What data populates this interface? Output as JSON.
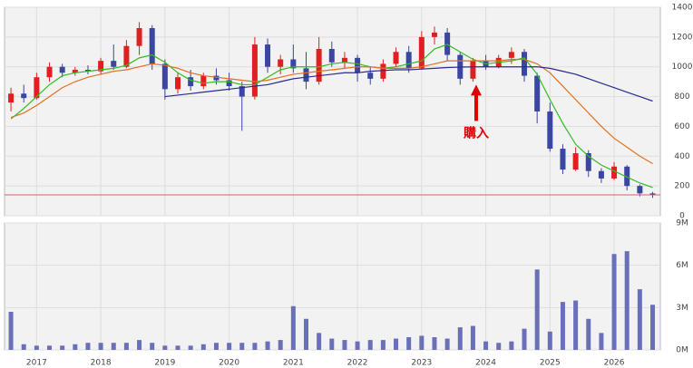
{
  "chart_data": [
    {
      "type": "candlestick",
      "x": [
        2016.6,
        2016.8,
        2017.0,
        2017.2,
        2017.4,
        2017.6,
        2017.8,
        2018.0,
        2018.2,
        2018.4,
        2018.6,
        2018.8,
        2019.0,
        2019.2,
        2019.4,
        2019.6,
        2019.8,
        2020.0,
        2020.2,
        2020.4,
        2020.6,
        2020.8,
        2021.0,
        2021.2,
        2021.4,
        2021.6,
        2021.8,
        2022.0,
        2022.2,
        2022.4,
        2022.6,
        2022.8,
        2023.0,
        2023.2,
        2023.4,
        2023.6,
        2023.8,
        2024.0,
        2024.2,
        2024.4,
        2024.6,
        2024.8,
        2025.0,
        2025.2,
        2025.4,
        2025.6,
        2025.8,
        2026.0,
        2026.2,
        2026.4,
        2026.6
      ],
      "open": [
        760,
        820,
        790,
        930,
        1000,
        960,
        980,
        970,
        1040,
        1000,
        1140,
        1260,
        1020,
        850,
        930,
        870,
        940,
        910,
        870,
        800,
        1150,
        1000,
        1050,
        990,
        900,
        1120,
        1030,
        1060,
        960,
        920,
        1020,
        1100,
        990,
        1200,
        1230,
        1080,
        920,
        1040,
        1000,
        1060,
        1100,
        940,
        700,
        450,
        310,
        420,
        300,
        250,
        330,
        200,
        150
      ],
      "high": [
        860,
        880,
        960,
        1030,
        1020,
        1000,
        1010,
        1060,
        1150,
        1180,
        1300,
        1280,
        1050,
        960,
        980,
        960,
        990,
        960,
        900,
        1200,
        1190,
        1080,
        1150,
        1100,
        1200,
        1170,
        1100,
        1080,
        1000,
        1050,
        1130,
        1140,
        1240,
        1270,
        1260,
        1100,
        1060,
        1080,
        1080,
        1130,
        1120,
        960,
        760,
        480,
        460,
        440,
        320,
        360,
        340,
        210,
        160
      ],
      "low": [
        700,
        760,
        780,
        900,
        930,
        940,
        950,
        950,
        980,
        990,
        1080,
        980,
        780,
        820,
        840,
        850,
        880,
        840,
        570,
        780,
        960,
        950,
        960,
        850,
        880,
        1000,
        990,
        900,
        880,
        900,
        1000,
        960,
        980,
        1150,
        1040,
        880,
        900,
        980,
        990,
        1020,
        900,
        620,
        430,
        280,
        300,
        260,
        220,
        240,
        170,
        130,
        120
      ],
      "close": [
        820,
        790,
        930,
        1000,
        960,
        980,
        970,
        1040,
        1000,
        1140,
        1260,
        1020,
        850,
        930,
        870,
        940,
        910,
        870,
        800,
        1150,
        1000,
        1050,
        990,
        900,
        1120,
        1030,
        1060,
        960,
        920,
        1020,
        1100,
        990,
        1200,
        1230,
        1080,
        920,
        1040,
        1000,
        1060,
        1100,
        940,
        700,
        450,
        310,
        420,
        300,
        250,
        330,
        200,
        150,
        140
      ],
      "up_color": "#e02020",
      "down_color": "#3a46a0",
      "series": [
        {
          "color": "#33bb22",
          "values": [
            650,
            720,
            800,
            880,
            940,
            960,
            970,
            980,
            990,
            1010,
            1060,
            1080,
            1030,
            960,
            910,
            890,
            900,
            900,
            880,
            880,
            930,
            980,
            1000,
            1000,
            1000,
            1020,
            1030,
            1020,
            1000,
            990,
            1000,
            1020,
            1040,
            1120,
            1150,
            1100,
            1050,
            1020,
            1030,
            1040,
            1060,
            950,
            780,
            620,
            480,
            400,
            340,
            300,
            260,
            220,
            190
          ]
        },
        {
          "color": "#e07020",
          "values": [
            660,
            690,
            740,
            800,
            860,
            900,
            930,
            950,
            970,
            980,
            1000,
            1020,
            1010,
            990,
            960,
            940,
            930,
            920,
            910,
            900,
            910,
            930,
            950,
            960,
            970,
            980,
            990,
            1000,
            1000,
            990,
            990,
            990,
            1000,
            1020,
            1040,
            1040,
            1040,
            1040,
            1040,
            1050,
            1050,
            1020,
            960,
            870,
            780,
            690,
            600,
            520,
            460,
            400,
            350
          ]
        },
        {
          "color": "#2a2a90",
          "values": [
            null,
            null,
            null,
            null,
            null,
            null,
            null,
            null,
            null,
            null,
            null,
            null,
            800,
            810,
            820,
            830,
            840,
            850,
            860,
            870,
            880,
            900,
            920,
            930,
            940,
            950,
            960,
            960,
            970,
            975,
            980,
            980,
            985,
            990,
            995,
            998,
            1000,
            1000,
            1000,
            1000,
            1000,
            1000,
            990,
            970,
            950,
            920,
            890,
            860,
            830,
            800,
            770
          ]
        }
      ],
      "reference_line": {
        "value": 140,
        "color": "#e06060"
      },
      "annotation": {
        "text": "購入",
        "x": 2023.85,
        "y": 880,
        "color": "#e00000"
      },
      "xlim": [
        2016.5,
        2026.72
      ],
      "xticks": [
        2017,
        2018,
        2019,
        2020,
        2021,
        2022,
        2023,
        2024,
        2025,
        2026
      ],
      "ylim": [
        0,
        1400
      ],
      "yticks": [
        0,
        200,
        400,
        600,
        800,
        1000,
        1200,
        1400
      ],
      "grid": true
    },
    {
      "type": "bar",
      "x": [
        2016.6,
        2016.8,
        2017.0,
        2017.2,
        2017.4,
        2017.6,
        2017.8,
        2018.0,
        2018.2,
        2018.4,
        2018.6,
        2018.8,
        2019.0,
        2019.2,
        2019.4,
        2019.6,
        2019.8,
        2020.0,
        2020.2,
        2020.4,
        2020.6,
        2020.8,
        2021.0,
        2021.2,
        2021.4,
        2021.6,
        2021.8,
        2022.0,
        2022.2,
        2022.4,
        2022.6,
        2022.8,
        2023.0,
        2023.2,
        2023.4,
        2023.6,
        2023.8,
        2024.0,
        2024.2,
        2024.4,
        2024.6,
        2024.8,
        2025.0,
        2025.2,
        2025.4,
        2025.6,
        2025.8,
        2026.0,
        2026.2,
        2026.4,
        2026.6
      ],
      "values": [
        2700000,
        400000,
        300000,
        300000,
        300000,
        400000,
        500000,
        500000,
        500000,
        500000,
        700000,
        500000,
        300000,
        300000,
        300000,
        400000,
        500000,
        500000,
        500000,
        500000,
        600000,
        700000,
        3100000,
        2200000,
        1200000,
        800000,
        700000,
        600000,
        700000,
        700000,
        800000,
        900000,
        1000000,
        900000,
        800000,
        1600000,
        1700000,
        600000,
        500000,
        600000,
        1500000,
        5700000,
        1300000,
        3400000,
        3500000,
        2200000,
        1200000,
        6800000,
        7000000,
        4300000,
        3200000
      ],
      "color": "#6a70b8",
      "xlim": [
        2016.5,
        2026.72
      ],
      "xticks": [
        2017,
        2018,
        2019,
        2020,
        2021,
        2022,
        2023,
        2024,
        2025,
        2026
      ],
      "ylim": [
        0,
        9000000
      ],
      "yticks": [
        {
          "value": 0,
          "label": "0M"
        },
        {
          "value": 3000000,
          "label": "3M"
        },
        {
          "value": 6000000,
          "label": "6M"
        },
        {
          "value": 9000000,
          "label": "9M"
        }
      ],
      "grid": true
    }
  ]
}
